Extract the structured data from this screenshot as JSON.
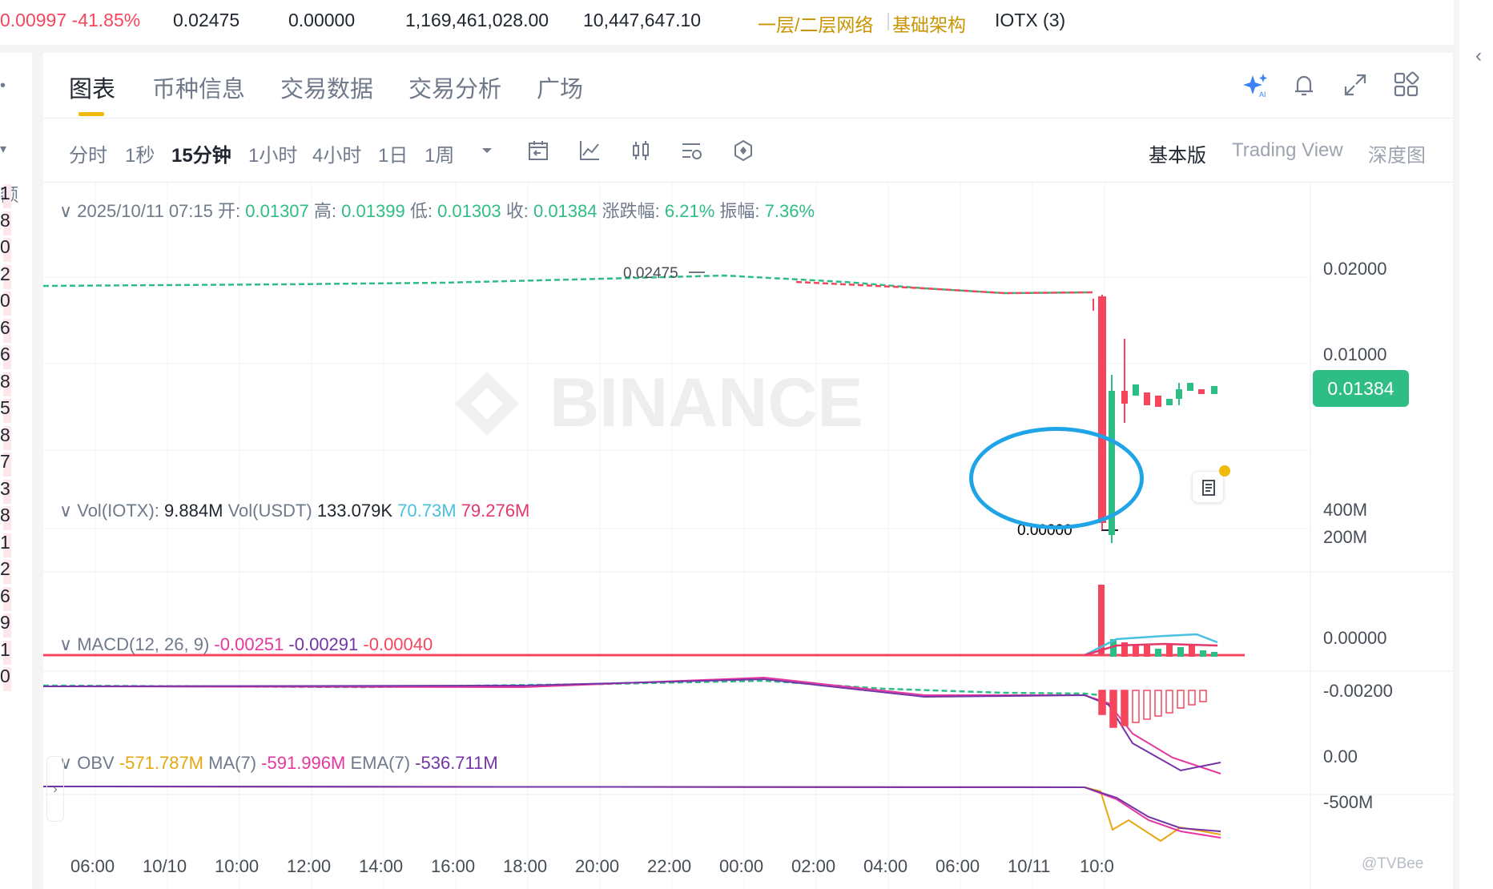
{
  "ticker": {
    "change": "0.00997 -41.85%",
    "high": "0.02475",
    "low": "0.00000",
    "vol_base": "1,169,461,028.00",
    "vol_quote": "10,447,647.10",
    "tag1": "一层/二层网络",
    "tag2": "基础架构",
    "pair": "IOTX (3)"
  },
  "left_numbers": [
    "1",
    "8",
    "0",
    "2",
    "0",
    "6",
    "6",
    "8",
    "5",
    "8",
    "7",
    "3",
    "8",
    "1",
    "2",
    "6",
    "9",
    "1",
    "0"
  ],
  "left_header": "额",
  "tabs": [
    "图表",
    "币种信息",
    "交易数据",
    "交易分析",
    "广场"
  ],
  "tab_icons": [
    "ai-sparkle-icon",
    "bell-icon",
    "expand-icon",
    "layout-grid-icon"
  ],
  "intervals": [
    "分时",
    "1秒",
    "15分钟",
    "1小时",
    "4小时",
    "1日",
    "1周"
  ],
  "active_interval": "15分钟",
  "tool_icons": [
    "calendar-icon",
    "indicator-icon",
    "candle-type-icon",
    "settings-sliders-icon",
    "hexagon-icon"
  ],
  "views": [
    "基本版",
    "Trading View",
    "深度图"
  ],
  "ohlc": {
    "date": "2025/10/11 07:15",
    "open_label": "开:",
    "open": "0.01307",
    "high_label": "高:",
    "high": "0.01399",
    "low_label": "低:",
    "low": "0.01303",
    "close_label": "收:",
    "close": "0.01384",
    "chg_label": "涨跌幅:",
    "chg": "6.21%",
    "amp_label": "振幅:",
    "amp": "7.36%"
  },
  "hi_marker": "0.02475",
  "lo_marker": "0.00000",
  "watermark_logo": "BINANCE",
  "price_axis": [
    "0.02000",
    "0.01000"
  ],
  "last_price": "0.01384",
  "vol_legend": {
    "l1": "Vol(IOTX):",
    "v1": "9.884M",
    "l2": "Vol(USDT)",
    "v2": "133.079K",
    "v3": "70.73M",
    "v4": "79.276M"
  },
  "vol_axis": [
    "400M",
    "200M"
  ],
  "macd_legend": {
    "label": "MACD(12, 26, 9)",
    "v1": "-0.00251",
    "v2": "-0.00291",
    "v3": "-0.00040"
  },
  "macd_axis": [
    "0.00000",
    "-0.00200"
  ],
  "obv_legend": {
    "label": "OBV",
    "v1": "-571.787M",
    "l2": "MA(7)",
    "v2": "-591.996M",
    "l3": "EMA(7)",
    "v3": "-536.711M"
  },
  "obv_axis": [
    "0.00",
    "-500M"
  ],
  "time_axis": [
    "06:00",
    "10/10",
    "10:00",
    "12:00",
    "14:00",
    "16:00",
    "18:00",
    "20:00",
    "22:00",
    "00:00",
    "02:00",
    "04:00",
    "06:00",
    "10/11",
    "10:0"
  ],
  "source_mark": "@TVBee",
  "colors": {
    "up": "#2ebd85",
    "down": "#f6465d",
    "accent": "#f0b90b",
    "highlight": "#1fa4e8"
  }
}
